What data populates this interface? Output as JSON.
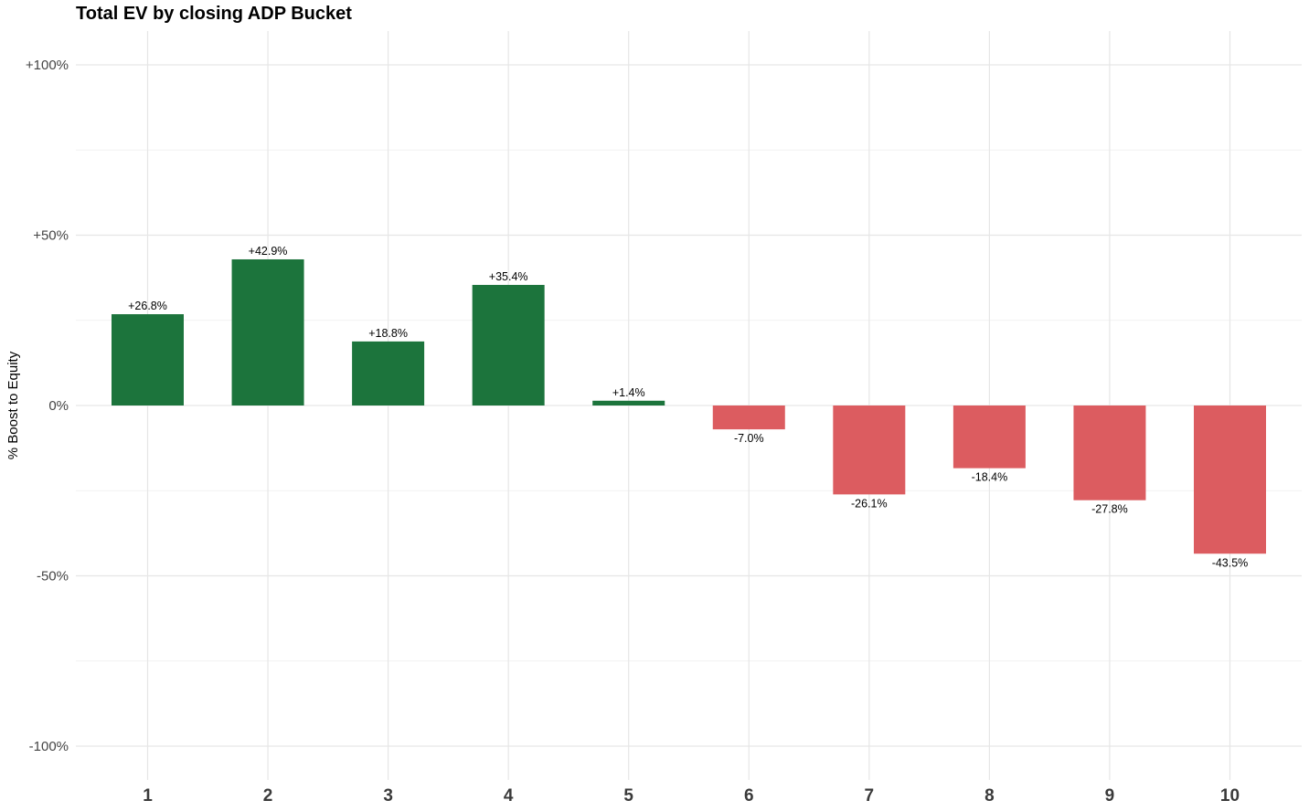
{
  "chart_data": {
    "type": "bar",
    "title": "Total EV by closing ADP Bucket",
    "xlabel": "",
    "ylabel": "% Boost to Equity",
    "categories": [
      "1",
      "2",
      "3",
      "4",
      "5",
      "6",
      "7",
      "8",
      "9",
      "10"
    ],
    "values": [
      26.8,
      42.9,
      18.8,
      35.4,
      1.4,
      -7.0,
      -26.1,
      -18.4,
      -27.8,
      -43.5
    ],
    "data_labels": [
      "+26.8%",
      "+42.9%",
      "+18.8%",
      "+35.4%",
      "+1.4%",
      "-7.0%",
      "-26.1%",
      "-18.4%",
      "-27.8%",
      "-43.5%"
    ],
    "ylim": [
      -110,
      110
    ],
    "yticks": [
      -100,
      -50,
      0,
      50,
      100
    ],
    "ytick_labels": [
      "-100%",
      "-50%",
      "0%",
      "+50%",
      "+100%"
    ],
    "grid": true,
    "legend": "none",
    "colors": {
      "positive": "#1c743c",
      "negative": "#dc5c60",
      "grid_major": "#e6e6e6",
      "grid_minor": "#f2f2f2"
    }
  }
}
